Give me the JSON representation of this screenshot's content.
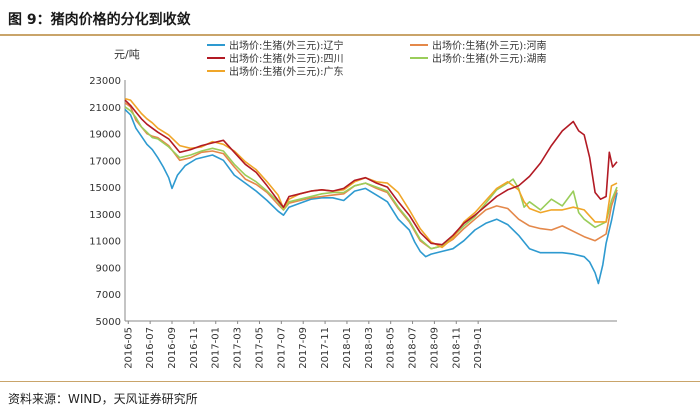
{
  "figure": {
    "title": "图 9：猪肉价格的分化到收敛",
    "source": "资料来源：WIND，天风证券研究所"
  },
  "chart_data": {
    "type": "line",
    "ylabel": "元/吨",
    "ylim": [
      5000,
      23000
    ],
    "yticks": [
      5000,
      7000,
      9000,
      11000,
      13000,
      15000,
      17000,
      19000,
      21000,
      23000
    ],
    "xticks": [
      "2016-05",
      "2016-07",
      "2016-09",
      "2016-11",
      "2017-01",
      "2017-03",
      "2017-05",
      "2017-07",
      "2017-09",
      "2017-11",
      "2018-01",
      "2018-03",
      "2018-05",
      "2018-07",
      "2018-09",
      "2018-11",
      "2019-01"
    ],
    "x_months_span": [
      0,
      45
    ],
    "colors": {
      "liaoning": "#2e9ad0",
      "henan": "#e4884a",
      "sichuan": "#b21a24",
      "hunan": "#9acd5a",
      "guangdong": "#f0a629"
    },
    "series": [
      {
        "key": "liaoning",
        "name": "出场价:生猪(外三元):辽宁",
        "points": [
          [
            0,
            20800
          ],
          [
            0.5,
            20400
          ],
          [
            1,
            19400
          ],
          [
            1.5,
            18800
          ],
          [
            2,
            18200
          ],
          [
            2.5,
            17800
          ],
          [
            3,
            17200
          ],
          [
            3.5,
            16500
          ],
          [
            4,
            15700
          ],
          [
            4.3,
            14900
          ],
          [
            4.8,
            15900
          ],
          [
            5.5,
            16600
          ],
          [
            6.5,
            17100
          ],
          [
            8,
            17400
          ],
          [
            9,
            17000
          ],
          [
            10,
            15900
          ],
          [
            11,
            15300
          ],
          [
            12,
            14700
          ],
          [
            13,
            14000
          ],
          [
            14,
            13200
          ],
          [
            14.5,
            12900
          ],
          [
            15,
            13500
          ],
          [
            16,
            13800
          ],
          [
            17,
            14100
          ],
          [
            18,
            14200
          ],
          [
            19,
            14200
          ],
          [
            20,
            14000
          ],
          [
            21,
            14700
          ],
          [
            22,
            14900
          ],
          [
            23,
            14400
          ],
          [
            24,
            13900
          ],
          [
            25,
            12600
          ],
          [
            26,
            11800
          ],
          [
            26.5,
            10900
          ],
          [
            27,
            10200
          ],
          [
            27.5,
            9800
          ],
          [
            28,
            10000
          ],
          [
            29,
            10200
          ],
          [
            30,
            10400
          ],
          [
            31,
            11000
          ],
          [
            32,
            11800
          ],
          [
            33,
            12300
          ],
          [
            34,
            12600
          ],
          [
            35,
            12200
          ],
          [
            36,
            11400
          ],
          [
            37,
            10400
          ],
          [
            38,
            10100
          ],
          [
            39,
            10100
          ],
          [
            40,
            10100
          ],
          [
            41,
            10000
          ],
          [
            42,
            9800
          ],
          [
            42.5,
            9400
          ],
          [
            43,
            8600
          ],
          [
            43.3,
            7800
          ],
          [
            43.7,
            9200
          ],
          [
            44,
            10800
          ],
          [
            44.5,
            12500
          ],
          [
            45,
            14600
          ]
        ]
      },
      {
        "key": "henan",
        "name": "出场价:生猪(外三元):河南",
        "points": [
          [
            0,
            21300
          ],
          [
            0.5,
            21000
          ],
          [
            1,
            20000
          ],
          [
            1.5,
            19500
          ],
          [
            2,
            19000
          ],
          [
            2.5,
            18800
          ],
          [
            3,
            18700
          ],
          [
            4,
            18100
          ],
          [
            5,
            17000
          ],
          [
            6,
            17200
          ],
          [
            7,
            17600
          ],
          [
            8,
            17700
          ],
          [
            9,
            17500
          ],
          [
            10,
            16500
          ],
          [
            11,
            15600
          ],
          [
            12,
            15200
          ],
          [
            13,
            14600
          ],
          [
            14,
            13700
          ],
          [
            14.5,
            13300
          ],
          [
            15,
            13800
          ],
          [
            16,
            14000
          ],
          [
            17,
            14200
          ],
          [
            18,
            14300
          ],
          [
            19,
            14400
          ],
          [
            20,
            14500
          ],
          [
            21,
            15100
          ],
          [
            22,
            15300
          ],
          [
            23,
            14900
          ],
          [
            24,
            14600
          ],
          [
            25,
            13400
          ],
          [
            26,
            12400
          ],
          [
            27,
            11000
          ],
          [
            28,
            10400
          ],
          [
            29,
            10600
          ],
          [
            30,
            11100
          ],
          [
            31,
            11900
          ],
          [
            32,
            12600
          ],
          [
            33,
            13300
          ],
          [
            34,
            13600
          ],
          [
            35,
            13400
          ],
          [
            36,
            12600
          ],
          [
            37,
            12100
          ],
          [
            38,
            11900
          ],
          [
            39,
            11800
          ],
          [
            40,
            12100
          ],
          [
            41,
            11700
          ],
          [
            42,
            11300
          ],
          [
            43,
            11000
          ],
          [
            44,
            11500
          ],
          [
            44.5,
            13600
          ],
          [
            45,
            14800
          ]
        ]
      },
      {
        "key": "sichuan",
        "name": "出场价:生猪(外三元):四川",
        "points": [
          [
            0,
            21500
          ],
          [
            0.5,
            21100
          ],
          [
            1,
            20600
          ],
          [
            1.5,
            20100
          ],
          [
            2,
            19700
          ],
          [
            2.5,
            19400
          ],
          [
            3,
            19100
          ],
          [
            4,
            18600
          ],
          [
            5,
            17600
          ],
          [
            6,
            17800
          ],
          [
            7,
            18100
          ],
          [
            8,
            18300
          ],
          [
            9,
            18500
          ],
          [
            10,
            17600
          ],
          [
            11,
            16700
          ],
          [
            12,
            16100
          ],
          [
            13,
            15100
          ],
          [
            14,
            14000
          ],
          [
            14.5,
            13500
          ],
          [
            15,
            14300
          ],
          [
            16,
            14500
          ],
          [
            17,
            14700
          ],
          [
            18,
            14800
          ],
          [
            19,
            14700
          ],
          [
            20,
            14900
          ],
          [
            21,
            15500
          ],
          [
            22,
            15700
          ],
          [
            23,
            15300
          ],
          [
            24,
            15000
          ],
          [
            25,
            13900
          ],
          [
            26,
            12900
          ],
          [
            27,
            11600
          ],
          [
            28,
            10800
          ],
          [
            29,
            10700
          ],
          [
            30,
            11400
          ],
          [
            31,
            12300
          ],
          [
            32,
            12900
          ],
          [
            33,
            13600
          ],
          [
            34,
            14300
          ],
          [
            35,
            14800
          ],
          [
            36,
            15100
          ],
          [
            37,
            15800
          ],
          [
            38,
            16800
          ],
          [
            39,
            18100
          ],
          [
            40,
            19200
          ],
          [
            41,
            19900
          ],
          [
            41.5,
            19200
          ],
          [
            42,
            18900
          ],
          [
            42.5,
            17200
          ],
          [
            43,
            14600
          ],
          [
            43.5,
            14100
          ],
          [
            44,
            14300
          ],
          [
            44.3,
            17600
          ],
          [
            44.6,
            16500
          ],
          [
            45,
            16900
          ]
        ]
      },
      {
        "key": "hunan",
        "name": "出场价:生猪(外三元):湖南",
        "points": [
          [
            0,
            21000
          ],
          [
            0.5,
            20700
          ],
          [
            1,
            20200
          ],
          [
            1.5,
            19500
          ],
          [
            2,
            19100
          ],
          [
            2.5,
            18700
          ],
          [
            3,
            18600
          ],
          [
            4,
            18000
          ],
          [
            5,
            17200
          ],
          [
            6,
            17400
          ],
          [
            7,
            17700
          ],
          [
            8,
            17900
          ],
          [
            9,
            17700
          ],
          [
            10,
            16700
          ],
          [
            11,
            15900
          ],
          [
            12,
            15400
          ],
          [
            13,
            14700
          ],
          [
            14,
            13900
          ],
          [
            14.5,
            13300
          ],
          [
            15,
            13900
          ],
          [
            16,
            14100
          ],
          [
            17,
            14300
          ],
          [
            18,
            14500
          ],
          [
            19,
            14600
          ],
          [
            20,
            14600
          ],
          [
            21,
            15100
          ],
          [
            22,
            15300
          ],
          [
            23,
            15000
          ],
          [
            24,
            14700
          ],
          [
            25,
            13500
          ],
          [
            26,
            12500
          ],
          [
            27,
            11100
          ],
          [
            28,
            10400
          ],
          [
            29,
            10600
          ],
          [
            30,
            11300
          ],
          [
            31,
            12100
          ],
          [
            32,
            12800
          ],
          [
            33,
            13800
          ],
          [
            34,
            14800
          ],
          [
            35,
            15300
          ],
          [
            35.5,
            15600
          ],
          [
            36,
            14900
          ],
          [
            36.5,
            13500
          ],
          [
            37,
            13900
          ],
          [
            38,
            13300
          ],
          [
            39,
            14100
          ],
          [
            40,
            13600
          ],
          [
            41,
            14700
          ],
          [
            41.5,
            13100
          ],
          [
            42,
            12600
          ],
          [
            43,
            12000
          ],
          [
            44,
            12400
          ],
          [
            44.5,
            14000
          ],
          [
            45,
            15000
          ]
        ]
      },
      {
        "key": "guangdong",
        "name": "出场价:生猪(外三元):广东",
        "points": [
          [
            0,
            21600
          ],
          [
            0.5,
            21500
          ],
          [
            1,
            21000
          ],
          [
            1.5,
            20500
          ],
          [
            2,
            20100
          ],
          [
            2.5,
            19800
          ],
          [
            3,
            19400
          ],
          [
            4,
            18900
          ],
          [
            5,
            18100
          ],
          [
            6,
            17900
          ],
          [
            7,
            18000
          ],
          [
            8,
            18400
          ],
          [
            9,
            18200
          ],
          [
            10,
            17700
          ],
          [
            11,
            16900
          ],
          [
            12,
            16300
          ],
          [
            13,
            15400
          ],
          [
            14,
            14400
          ],
          [
            14.5,
            13400
          ],
          [
            15,
            14100
          ],
          [
            16,
            14500
          ],
          [
            17,
            14700
          ],
          [
            18,
            14800
          ],
          [
            19,
            14700
          ],
          [
            20,
            14800
          ],
          [
            21,
            15400
          ],
          [
            22,
            15700
          ],
          [
            23,
            15400
          ],
          [
            24,
            15300
          ],
          [
            25,
            14600
          ],
          [
            26,
            13300
          ],
          [
            27,
            11900
          ],
          [
            28,
            10900
          ],
          [
            29,
            10500
          ],
          [
            30,
            11200
          ],
          [
            31,
            12400
          ],
          [
            32,
            13100
          ],
          [
            33,
            14000
          ],
          [
            34,
            14900
          ],
          [
            35,
            15400
          ],
          [
            36,
            14800
          ],
          [
            36.5,
            13900
          ],
          [
            37,
            13400
          ],
          [
            38,
            13100
          ],
          [
            39,
            13300
          ],
          [
            40,
            13300
          ],
          [
            41,
            13500
          ],
          [
            42,
            13300
          ],
          [
            43,
            12400
          ],
          [
            44,
            12400
          ],
          [
            44.5,
            15100
          ],
          [
            45,
            15300
          ]
        ]
      }
    ],
    "legend": [
      "liaoning",
      "henan",
      "sichuan",
      "hunan",
      "guangdong"
    ]
  }
}
